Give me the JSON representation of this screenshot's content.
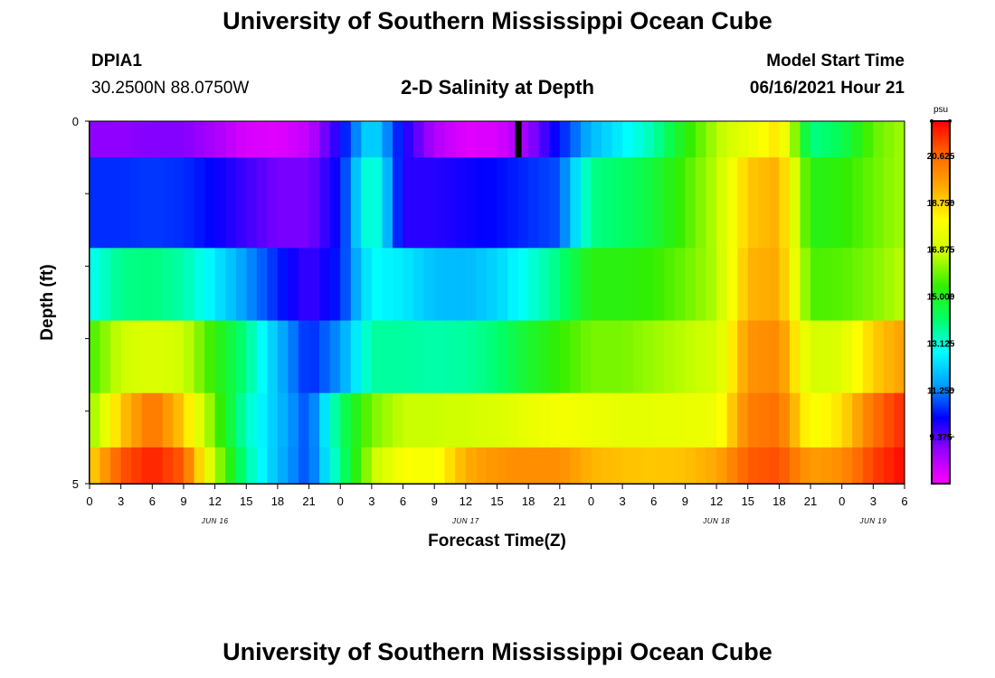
{
  "header": {
    "title": "University of Southern Mississippi Ocean Cube",
    "station_id": "DPIA1",
    "station_coords": "30.2500N  88.0750W",
    "subtitle": "2-D Salinity at Depth",
    "model_label": "Model Start Time",
    "model_time": "06/16/2021 Hour 21"
  },
  "footer": {
    "title": "University of Southern Mississippi Ocean Cube"
  },
  "chart_data": {
    "type": "heatmap",
    "title": "2-D Salinity at Depth",
    "xlabel": "Forecast Time(Z)",
    "ylabel": "Depth (ft)",
    "units": "psu",
    "y_range": [
      0,
      5
    ],
    "y_tick_labels": [
      "0",
      "5"
    ],
    "x_tick_labels": [
      "0",
      "3",
      "6",
      "9",
      "12",
      "15",
      "18",
      "21",
      "0",
      "3",
      "6",
      "9",
      "12",
      "15",
      "18",
      "21",
      "0",
      "3",
      "6",
      "9",
      "12",
      "15",
      "18",
      "21",
      "0",
      "3",
      "6"
    ],
    "date_labels": [
      {
        "label": "JUN 16",
        "tick_index": 4
      },
      {
        "label": "JUN 17",
        "tick_index": 12
      },
      {
        "label": "JUN 18",
        "tick_index": 20
      },
      {
        "label": "JUN 19",
        "tick_index": 25
      }
    ],
    "colorbar": {
      "min": 7.5,
      "max": 22.0,
      "tick_values": [
        9.375,
        11.25,
        13.125,
        15.0,
        16.875,
        18.75,
        20.625
      ],
      "tick_labels": [
        "9.375",
        "11.250",
        "13.125",
        "15.000",
        "16.875",
        "18.750",
        "20.625"
      ],
      "colors": [
        "#ff00ff",
        "#9900ff",
        "#0000ff",
        "#00a0ff",
        "#00ffff",
        "#00ff66",
        "#33ee00",
        "#ccff00",
        "#ffff00",
        "#ffaa00",
        "#ff6600",
        "#ff0000"
      ]
    },
    "layers_depth_ft": [
      0.25,
      1.25,
      2.25,
      3.25,
      4.25,
      4.75
    ],
    "time_hours": [
      0,
      3,
      6,
      9,
      12,
      15,
      18,
      21,
      24,
      27,
      30,
      33,
      36,
      39,
      42,
      45,
      48,
      51,
      54,
      57,
      60,
      63,
      66,
      69,
      72,
      75,
      78
    ],
    "salinity": [
      [
        8.9,
        8.9,
        9.0,
        9.0,
        8.6,
        8.0,
        7.9,
        8.3,
        10.0,
        12.5,
        10.0,
        8.5,
        7.9,
        8.0,
        8.8,
        10.3,
        11.8,
        12.6,
        13.5,
        15.2,
        16.5,
        17.5,
        18.5,
        13.8,
        14.3,
        15.8,
        16.4
      ],
      [
        10.5,
        10.5,
        10.6,
        10.5,
        10.1,
        9.6,
        9.1,
        9.1,
        10.2,
        13.7,
        9.8,
        9.8,
        10.0,
        10.2,
        10.5,
        10.8,
        13.8,
        14.1,
        14.6,
        15.6,
        16.6,
        18.9,
        19.3,
        15.1,
        15.3,
        15.9,
        16.4
      ],
      [
        12.8,
        13.8,
        13.9,
        13.5,
        12.5,
        11.4,
        10.4,
        9.6,
        10.4,
        12.8,
        12.5,
        11.9,
        11.8,
        12.2,
        13.0,
        13.9,
        15.2,
        15.2,
        15.4,
        15.9,
        16.5,
        19.2,
        19.4,
        15.6,
        15.7,
        16.1,
        16.6
      ],
      [
        15.5,
        16.8,
        17.2,
        16.8,
        15.3,
        13.8,
        11.8,
        10.4,
        11.4,
        13.6,
        13.6,
        13.5,
        13.6,
        14.0,
        14.8,
        15.4,
        16.0,
        16.0,
        16.3,
        16.6,
        16.9,
        19.8,
        20.0,
        16.9,
        17.2,
        18.8,
        19.6
      ],
      [
        16.0,
        18.9,
        20.5,
        18.8,
        15.8,
        13.3,
        11.9,
        10.7,
        14.1,
        16.0,
        16.7,
        16.7,
        16.9,
        17.1,
        17.5,
        17.8,
        17.6,
        17.4,
        17.4,
        17.5,
        17.6,
        20.2,
        20.5,
        17.8,
        18.5,
        20.5,
        21.5
      ],
      [
        18.6,
        20.9,
        21.6,
        20.8,
        16.6,
        13.6,
        11.8,
        10.7,
        13.8,
        16.6,
        18.0,
        17.8,
        19.3,
        19.8,
        19.9,
        19.9,
        19.2,
        19.0,
        18.9,
        19.0,
        19.4,
        20.8,
        21.0,
        19.6,
        19.9,
        21.2,
        21.9
      ]
    ],
    "marker": {
      "time_hours": 41,
      "depth_range_ft": [
        0,
        0.5
      ],
      "color": "#000000"
    }
  }
}
